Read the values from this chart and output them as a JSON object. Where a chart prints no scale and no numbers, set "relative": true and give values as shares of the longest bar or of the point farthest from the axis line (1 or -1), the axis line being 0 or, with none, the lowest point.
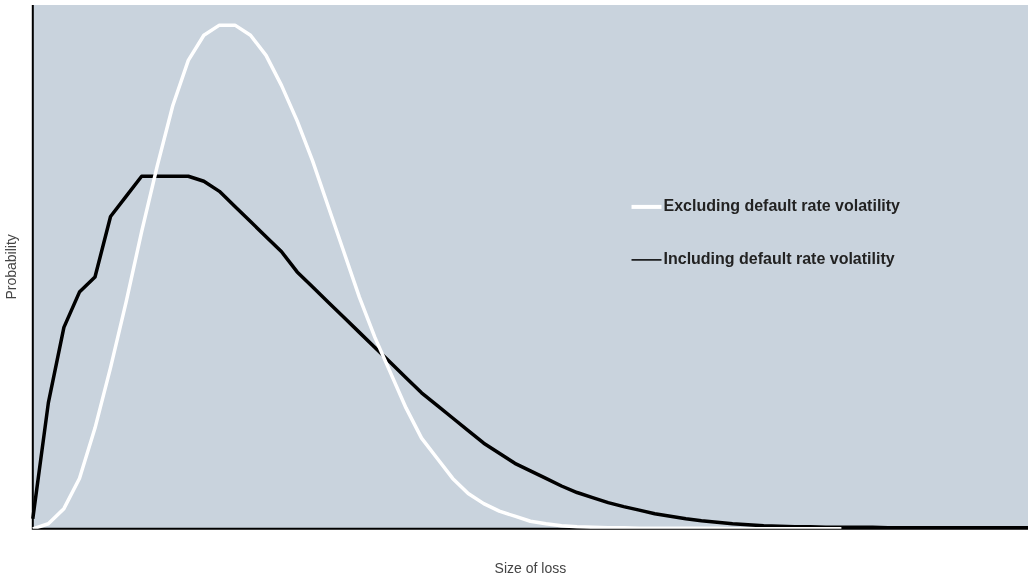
{
  "chart_data": {
    "type": "line",
    "relative": true,
    "xlabel": "Size of loss",
    "ylabel": "Probability",
    "legend": "right",
    "grid": false,
    "marker": "none",
    "line_style": "solid",
    "categories": [
      null,
      null,
      null,
      null,
      null,
      null,
      null,
      null,
      null,
      null,
      null,
      null,
      null,
      null,
      null,
      null,
      null,
      null,
      null,
      null,
      null,
      null,
      null,
      null,
      null,
      null,
      null,
      null,
      null,
      null,
      null,
      null,
      null,
      null,
      null,
      null,
      null,
      null,
      null,
      null,
      null,
      null,
      null,
      null,
      null,
      null,
      null,
      null,
      null,
      null,
      null,
      null,
      null,
      null,
      null,
      null,
      null,
      null,
      null,
      null,
      null,
      null,
      null,
      null,
      null
    ],
    "series": [
      {
        "name": "Excluding default rate volatility",
        "color": "#ffffff",
        "values": [
          0,
          0.01,
          0.04,
          0.1,
          0.2,
          0.32,
          0.45,
          0.59,
          0.72,
          0.84,
          0.93,
          0.98,
          1,
          1,
          0.98,
          0.94,
          0.88,
          0.81,
          0.73,
          0.64,
          0.55,
          0.46,
          0.38,
          0.31,
          0.24,
          0.18,
          0.14,
          0.1,
          0.07,
          0.05,
          0.035,
          0.025,
          0.015,
          0.01,
          0.006,
          0.004,
          0.003,
          0.002,
          0.002,
          0.001,
          0.001,
          0.001,
          0.001,
          0.001,
          0.001,
          0,
          0,
          0,
          0,
          0,
          0,
          0,
          0,
          null,
          null,
          null,
          null,
          null,
          null,
          null,
          null,
          null,
          null,
          null,
          null
        ]
      },
      {
        "name": "Including default rate volatility",
        "color": "#000000",
        "values": [
          0.02,
          0.25,
          0.4,
          0.47,
          0.5,
          0.62,
          0.66,
          0.7,
          0.7,
          0.7,
          0.7,
          0.69,
          0.67,
          0.64,
          0.61,
          0.58,
          0.55,
          0.51,
          0.48,
          0.45,
          0.42,
          0.39,
          0.36,
          0.33,
          0.3,
          0.27,
          0.245,
          0.22,
          0.195,
          0.17,
          0.15,
          0.13,
          0.115,
          0.1,
          0.085,
          0.072,
          0.062,
          0.052,
          0.044,
          0.037,
          0.03,
          0.025,
          0.02,
          0.016,
          0.013,
          0.01,
          0.008,
          0.006,
          0.005,
          0.004,
          0.004,
          0.003,
          0.003,
          0.003,
          0.003,
          0.002,
          0.002,
          0.002,
          0.002,
          0.002,
          0.002,
          0.002,
          0.002,
          0.002,
          0.002
        ]
      }
    ]
  }
}
